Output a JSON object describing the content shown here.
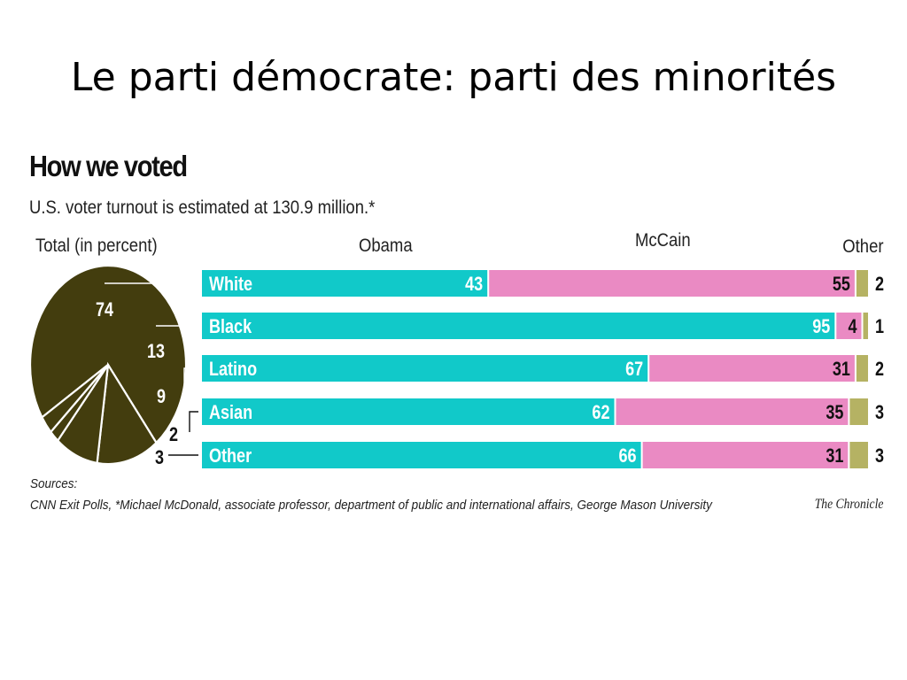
{
  "slide": {
    "title": "Le parti démocrate: parti des minorités"
  },
  "figure": {
    "title": "How we voted",
    "subtitle": "U.S. voter turnout is estimated at 130.9 million.*",
    "pie_heading": "Total (in percent)",
    "sources_label": "Sources:",
    "sources_text": "CNN Exit Polls, *Michael McDonald, associate professor, department of public and international affairs, George Mason University",
    "credit": "The Chronicle"
  },
  "colors": {
    "obama": "#11c9c9",
    "mccain": "#ea8ac3",
    "other": "#b5b263",
    "pie": "#433d0e"
  },
  "chart_data": [
    {
      "type": "pie",
      "title": "Total (in percent)",
      "categories": [
        "White",
        "Black",
        "Latino",
        "Asian",
        "Other"
      ],
      "values": [
        74,
        13,
        9,
        2,
        3
      ]
    },
    {
      "type": "bar",
      "stacked": true,
      "orientation": "horizontal",
      "categories": [
        "White",
        "Black",
        "Latino",
        "Asian",
        "Other"
      ],
      "series": [
        {
          "name": "Obama",
          "values": [
            43,
            95,
            67,
            62,
            66
          ]
        },
        {
          "name": "McCain",
          "values": [
            55,
            4,
            31,
            35,
            31
          ]
        },
        {
          "name": "Other",
          "values": [
            2,
            1,
            2,
            3,
            3
          ]
        }
      ],
      "xlim": [
        0,
        100
      ]
    }
  ]
}
